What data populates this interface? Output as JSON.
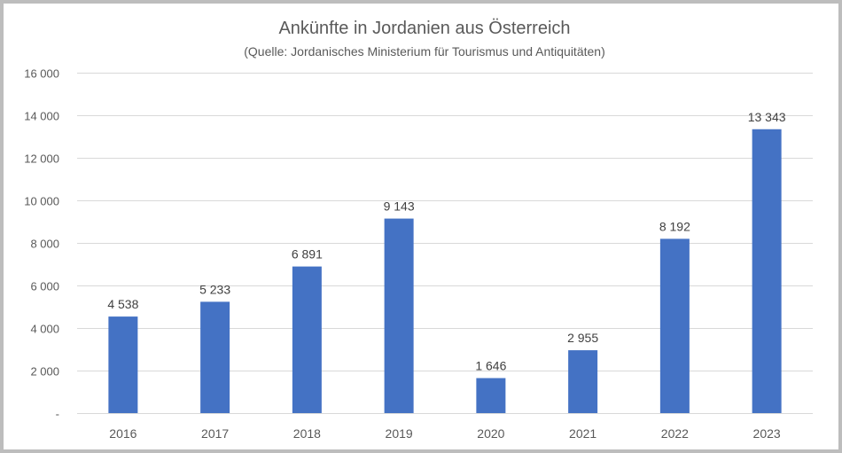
{
  "chart_data": {
    "type": "bar",
    "title": "Ankünfte in Jordanien aus Österreich",
    "subtitle": "(Quelle: Jordanisches Ministerium für Tourismus und Antiquitäten)",
    "xlabel": "",
    "ylabel": "",
    "categories": [
      "2016",
      "2017",
      "2018",
      "2019",
      "2020",
      "2021",
      "2022",
      "2023"
    ],
    "values": [
      4538,
      5233,
      6891,
      9143,
      1646,
      2955,
      8192,
      13343
    ],
    "data_labels": [
      "4 538",
      "5 233",
      "6 891",
      "9 143",
      "1 646",
      "2 955",
      "8 192",
      "13 343"
    ],
    "ylim": [
      0,
      16000
    ],
    "yticks": [
      0,
      2000,
      4000,
      6000,
      8000,
      10000,
      12000,
      14000,
      16000
    ],
    "ytick_labels": [
      "-",
      "2 000",
      "4 000",
      "6 000",
      "8 000",
      "10 000",
      "12 000",
      "14 000",
      "16 000"
    ],
    "grid": true,
    "legend": "none",
    "bar_color": "#4472c4"
  }
}
